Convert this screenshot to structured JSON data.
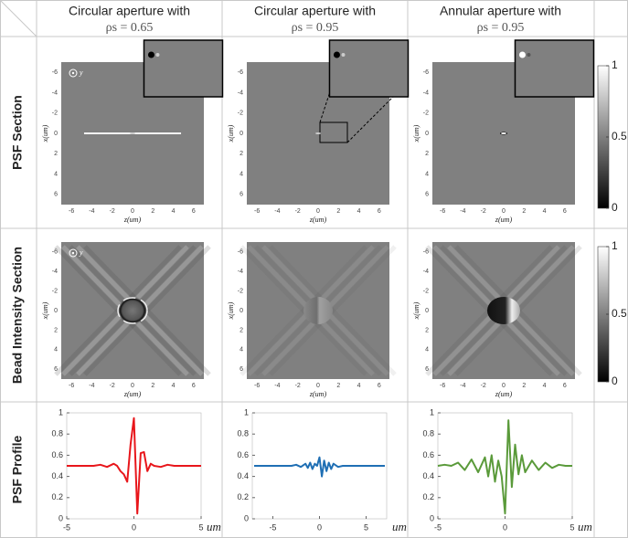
{
  "columns": [
    {
      "title": "Circular aperture with",
      "subtitle": "ρs = 0.65"
    },
    {
      "title": "Circular aperture with",
      "subtitle": "ρs = 0.95"
    },
    {
      "title": "Annular aperture with",
      "subtitle": "ρs = 0.95"
    }
  ],
  "rows": [
    "PSF Section",
    "Bead Intensity Section",
    "PSF Profile"
  ],
  "image_axes": {
    "xlabel": "z(um)",
    "ylabel": "x(um)",
    "lim": [
      -7,
      7
    ],
    "ticks": [
      -6,
      -4,
      -2,
      0,
      2,
      4,
      6
    ],
    "marker": "y"
  },
  "colorbar": {
    "lim": [
      0,
      1
    ],
    "ticks": [
      0,
      0.5,
      1
    ]
  },
  "chart_data": [
    {
      "type": "line",
      "xlabel": "um",
      "xlim": [
        -5,
        5
      ],
      "ylim": [
        0,
        1
      ],
      "xticks": [
        -5,
        0,
        5
      ],
      "yticks": [
        0,
        0.2,
        0.4,
        0.6,
        0.8,
        1
      ],
      "x": [
        -5,
        -4.5,
        -4,
        -3.5,
        -3,
        -2.5,
        -2,
        -1.5,
        -1.25,
        -1,
        -0.75,
        -0.5,
        -0.25,
        0,
        0.25,
        0.5,
        0.75,
        1,
        1.25,
        1.5,
        2,
        2.5,
        3,
        3.5,
        4,
        4.5,
        5
      ],
      "series": [
        {
          "color": "#e8161b",
          "values": [
            0.5,
            0.5,
            0.5,
            0.5,
            0.5,
            0.51,
            0.49,
            0.52,
            0.5,
            0.45,
            0.42,
            0.35,
            0.7,
            0.95,
            0.05,
            0.62,
            0.63,
            0.45,
            0.52,
            0.5,
            0.49,
            0.51,
            0.5,
            0.5,
            0.5,
            0.5,
            0.5
          ]
        }
      ]
    },
    {
      "type": "line",
      "xlabel": "um",
      "xlim": [
        -7.2,
        7.2
      ],
      "ylim": [
        0,
        1
      ],
      "xticks": [
        -5,
        0,
        5
      ],
      "yticks": [
        0,
        0.2,
        0.4,
        0.6,
        0.8,
        1
      ],
      "x": [
        -7,
        -6,
        -5,
        -4,
        -3,
        -2.5,
        -2,
        -1.5,
        -1.25,
        -1,
        -0.75,
        -0.5,
        -0.25,
        0,
        0.25,
        0.5,
        0.75,
        1,
        1.25,
        1.5,
        2,
        2.5,
        3,
        4,
        5,
        6,
        7
      ],
      "series": [
        {
          "color": "#1f6fb4",
          "values": [
            0.5,
            0.5,
            0.5,
            0.5,
            0.5,
            0.51,
            0.49,
            0.52,
            0.48,
            0.53,
            0.47,
            0.52,
            0.5,
            0.58,
            0.4,
            0.55,
            0.45,
            0.53,
            0.47,
            0.52,
            0.49,
            0.5,
            0.5,
            0.5,
            0.5,
            0.5,
            0.5
          ]
        }
      ]
    },
    {
      "type": "line",
      "xlabel": "um",
      "xlim": [
        -5,
        5
      ],
      "ylim": [
        0,
        1
      ],
      "xticks": [
        -5,
        0,
        5
      ],
      "yticks": [
        0,
        0.2,
        0.4,
        0.6,
        0.8,
        1
      ],
      "x": [
        -5,
        -4.5,
        -4,
        -3.5,
        -3,
        -2.5,
        -2,
        -1.5,
        -1.25,
        -1,
        -0.75,
        -0.5,
        -0.25,
        0,
        0.25,
        0.5,
        0.75,
        1,
        1.25,
        1.5,
        2,
        2.5,
        3,
        3.5,
        4,
        4.5,
        5
      ],
      "series": [
        {
          "color": "#5a9a3a",
          "values": [
            0.5,
            0.51,
            0.5,
            0.53,
            0.46,
            0.56,
            0.44,
            0.58,
            0.4,
            0.6,
            0.35,
            0.55,
            0.4,
            0.05,
            0.93,
            0.3,
            0.7,
            0.42,
            0.6,
            0.44,
            0.55,
            0.46,
            0.53,
            0.48,
            0.51,
            0.5,
            0.5
          ]
        }
      ]
    }
  ]
}
